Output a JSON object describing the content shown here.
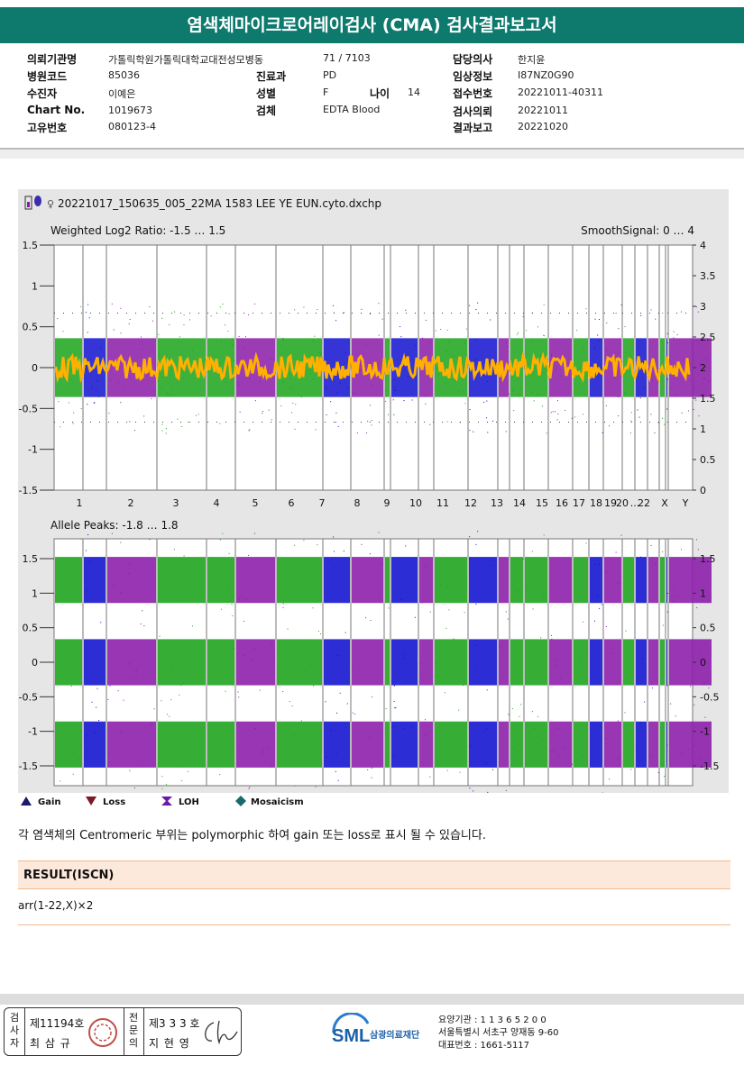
{
  "title": "염색체마이크로어레이검사 (CMA) 검사결과보고서",
  "info": {
    "inst_label": "의뢰기관명",
    "inst_value": "가톨릭학원가톨릭대학교대전성모병동",
    "ward": "71 / 7103",
    "code_label": "병원코드",
    "code_value": "85036",
    "dept_label": "진료과",
    "dept_value": "PD",
    "patient_label": "수진자",
    "patient_value": "이예은",
    "sex_label": "성별",
    "sex_value": "F",
    "age_label": "나이",
    "age_value": "14",
    "chart_label": "Chart No.",
    "chart_value": "1019673",
    "specimen_label": "검체",
    "specimen_value": "EDTA Blood",
    "uid_label": "고유번호",
    "uid_value": "080123-4",
    "doctor_label": "담당의사",
    "doctor_value": "한지윤",
    "clinical_label": "임상정보",
    "clinical_value": "I87NZ0G90",
    "receipt_label": "접수번호",
    "receipt_value": "20221011-40311",
    "request_label": "검사의뢰",
    "request_value": "20221011",
    "report_label": "결과보고",
    "report_value": "20221020"
  },
  "chart_data": {
    "type": "scatter",
    "file_title": "20221017_150635_005_22MA 1583 LEE YE EUN.cyto.dxchp",
    "top_panel": {
      "label": "Weighted Log2 Ratio: -1.5 … 1.5",
      "right_label": "SmoothSignal: 0 … 4",
      "left_ticks": [
        "1.5",
        "1",
        "0.5",
        "0",
        "-0.5",
        "-1",
        "-1.5"
      ],
      "right_ticks": [
        "4",
        "3.5",
        "3",
        "2.5",
        "2",
        "1.5",
        "1",
        "0.5",
        "0"
      ],
      "chromosomes": [
        "1",
        "2",
        "3",
        "4",
        "5",
        "6",
        "7",
        "8",
        "9",
        "10",
        "11",
        "12",
        "13",
        "14",
        "15",
        "16",
        "17",
        "18",
        "19",
        "20",
        "...",
        "22",
        "X",
        "Y"
      ]
    },
    "bottom_panel": {
      "label": "Allele Peaks: -1.8 … 1.8",
      "left_ticks": [
        "1.5",
        "1",
        "0.5",
        "0",
        "-0.5",
        "-1",
        "-1.5"
      ],
      "right_ticks": [
        "1.5",
        "1",
        "0.5",
        "0",
        "-0.5",
        "-1",
        "-1.5"
      ]
    },
    "colors": {
      "green": "#1aa31a",
      "blue": "#1010d0",
      "purple": "#8a1aa8",
      "orange": "#ffb000"
    }
  },
  "legend": {
    "gain": "Gain",
    "loss": "Loss",
    "loh": "LOH",
    "mosaicism": "Mosaicism"
  },
  "note": "각 염색체의 Centromeric 부위는 polymorphic 하여 gain 또는 loss로 표시 될 수 있습니다.",
  "result_header": "RESULT(ISCN)",
  "result_value": "arr(1-22,X)×2",
  "footer": {
    "stamp_label_a": "검사자",
    "stamp_no_a": "제11194호",
    "stamp_name_a": "최 삼 규",
    "stamp_label_b": "전문의",
    "stamp_no_b": "제3 3 3 호",
    "stamp_name_b": "지 현 영",
    "logo": "SML",
    "org": "삼광의료재단",
    "line1": "요양기관 : 1 1 3 6 5 2 0 0",
    "line2": "서울특별시 서초구 양재동 9-60",
    "line3": "대표번호 : 1661-5117"
  }
}
